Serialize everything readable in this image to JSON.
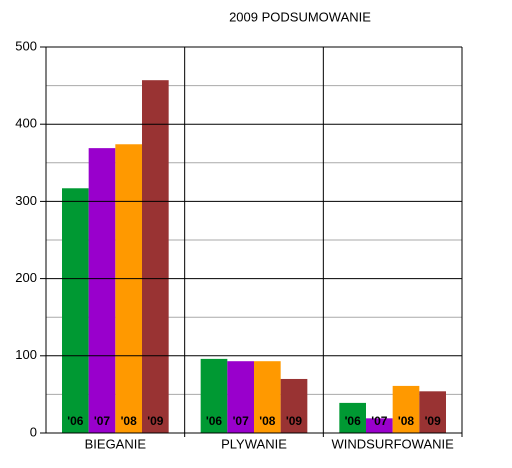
{
  "chart_data": {
    "type": "bar",
    "title": "2009 PODSUMOWANIE",
    "categories": [
      "BIEGANIE",
      "PLYWANIE",
      "WINDSURFOWANIE"
    ],
    "series": [
      {
        "name": "'06",
        "color": "#009933",
        "values": [
          317,
          96,
          39
        ]
      },
      {
        "name": "'07",
        "color": "#9900cc",
        "values": [
          369,
          93,
          19
        ]
      },
      {
        "name": "'08",
        "color": "#ff9900",
        "values": [
          374,
          93,
          61
        ]
      },
      {
        "name": "'09",
        "color": "#993333",
        "values": [
          457,
          70,
          54
        ]
      }
    ],
    "ylim": [
      0,
      500
    ],
    "yticks": [
      0,
      100,
      200,
      300,
      400,
      500
    ],
    "grid": true
  }
}
